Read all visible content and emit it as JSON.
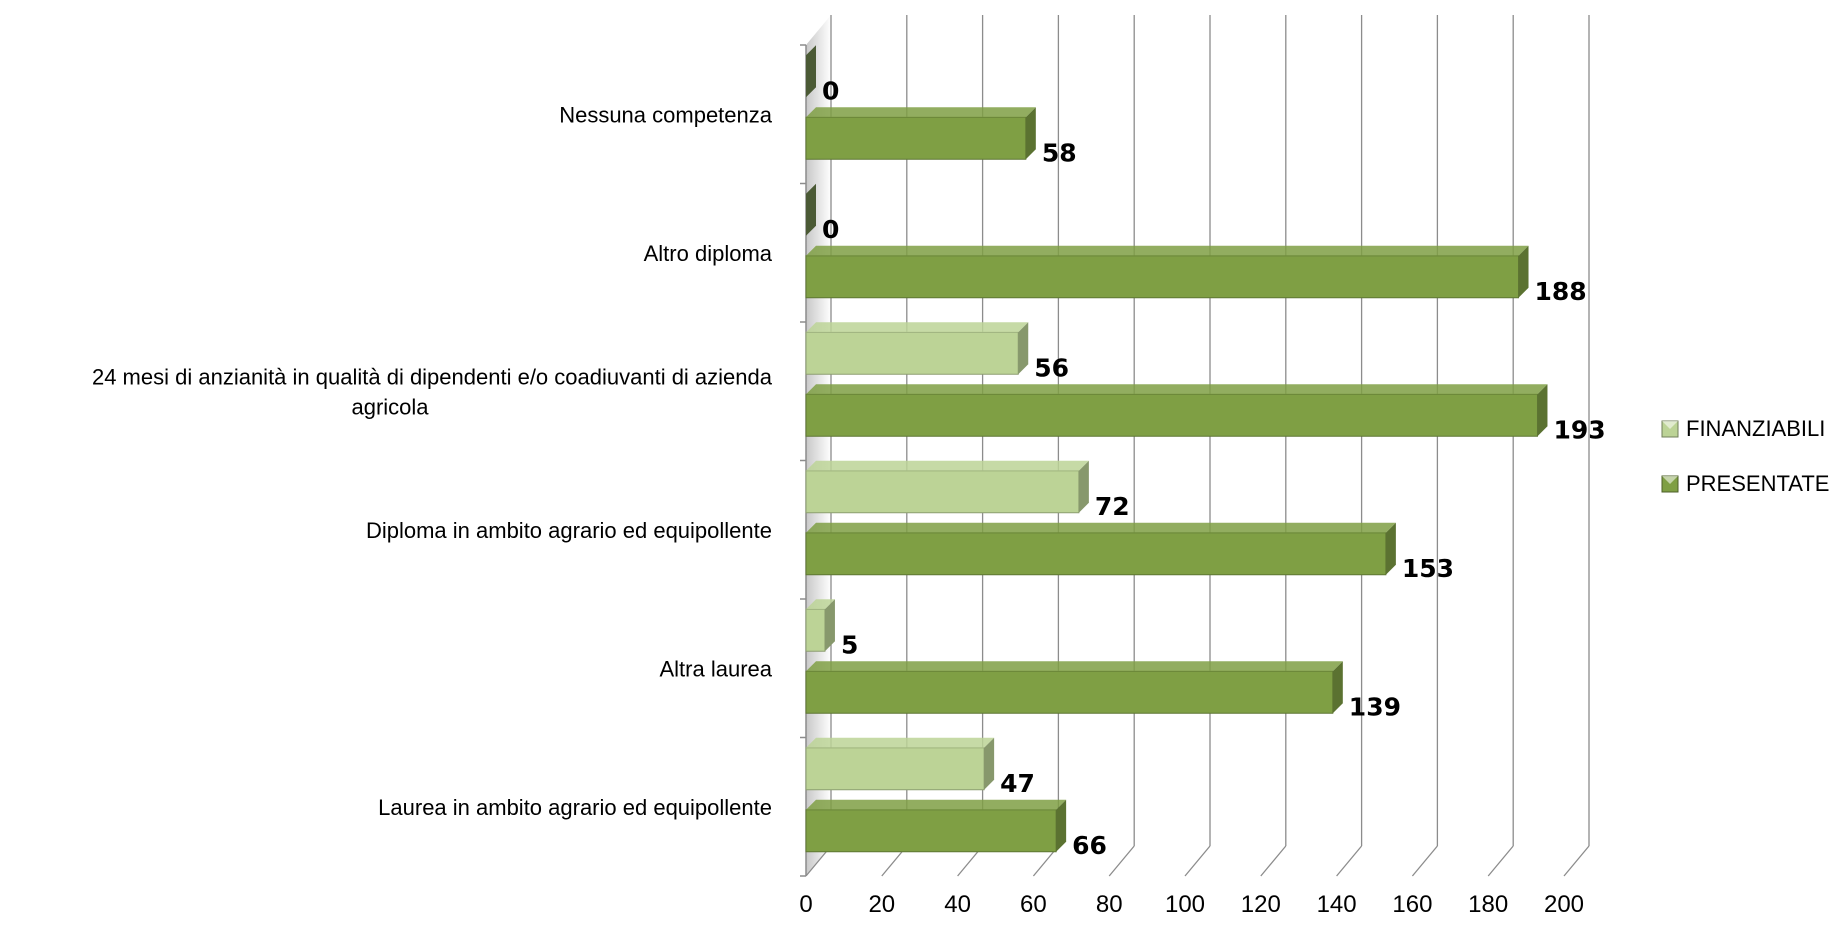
{
  "chart_data": {
    "type": "bar",
    "orientation": "horizontal",
    "style": "3d",
    "categories": [
      "Laurea in ambito agrario ed equipollente",
      "Altra laurea",
      "Diploma in ambito agrario ed equipollente",
      "24 mesi di anzianità in qualità di dipendenti e/o coadiuvanti di azienda agricola",
      "Altro diploma",
      "Nessuna competenza"
    ],
    "category_label_lines": [
      [
        "Laurea in ambito agrario ed equipollente"
      ],
      [
        "Altra laurea"
      ],
      [
        "Diploma in ambito agrario ed equipollente"
      ],
      [
        "24 mesi di anzianità in qualità di dipendenti e/o coadiuvanti di azienda",
        "agricola"
      ],
      [
        "Altro diploma"
      ],
      [
        "Nessuna competenza"
      ]
    ],
    "series": [
      {
        "name": "FINANZIABILI",
        "values": [
          47,
          5,
          72,
          56,
          0,
          0
        ],
        "color": "#bcd396"
      },
      {
        "name": "PRESENTATE",
        "values": [
          66,
          139,
          153,
          193,
          188,
          58
        ],
        "color": "#7f9f44"
      }
    ],
    "xlim": [
      0,
      200
    ],
    "xticks": [
      "0",
      "20",
      "40",
      "60",
      "80",
      "100",
      "120",
      "140",
      "160",
      "180",
      "200"
    ],
    "title": "",
    "xlabel": "",
    "ylabel": "",
    "grid": true,
    "legend_position": "right"
  }
}
